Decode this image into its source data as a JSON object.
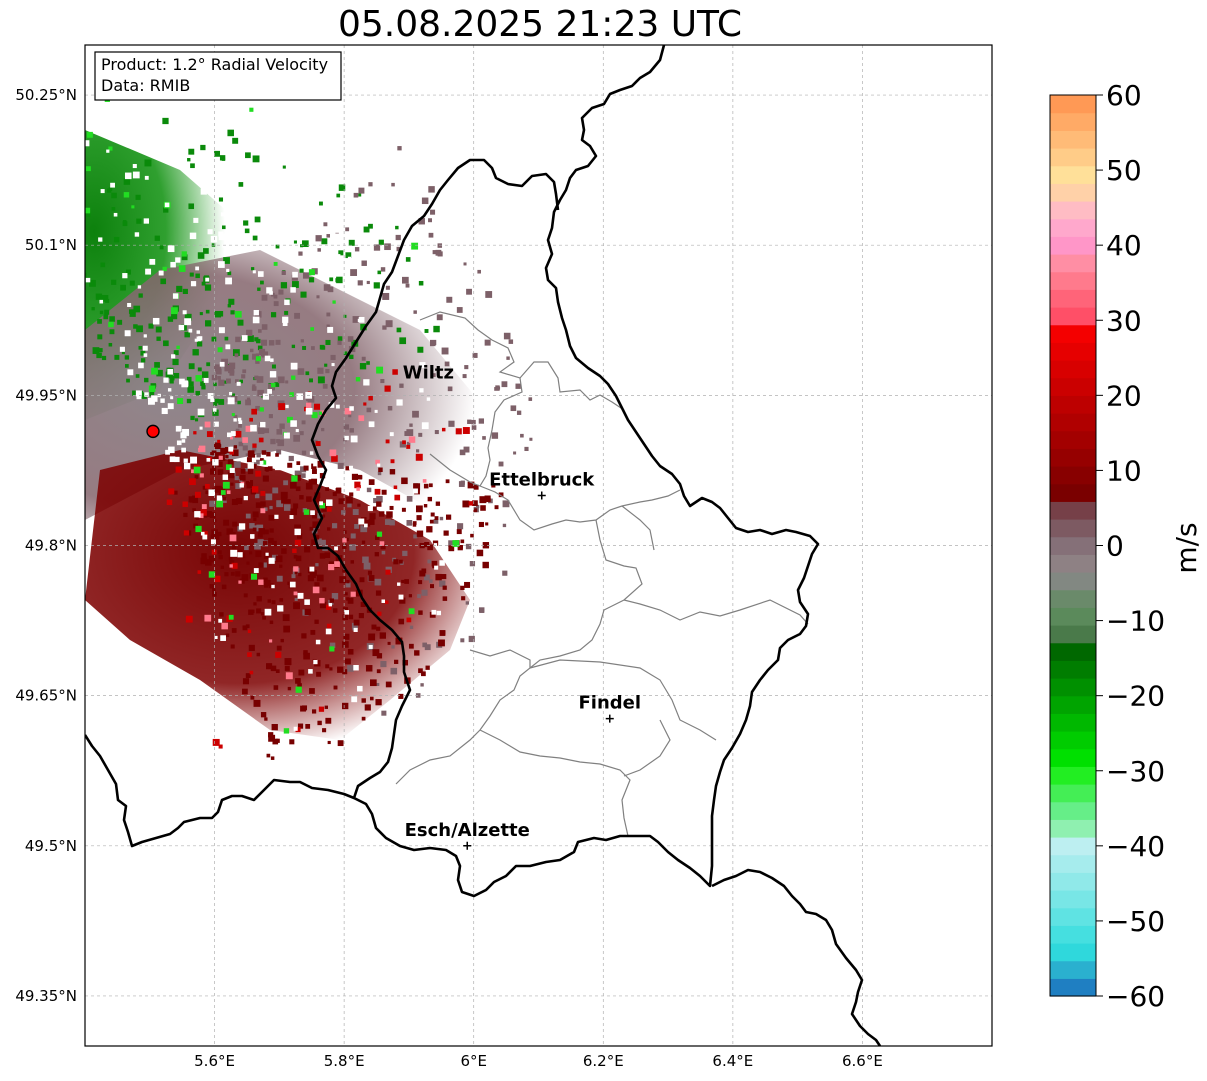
{
  "title": "05.08.2025 21:23 UTC",
  "info_box": {
    "product": "Product: 1.2° Radial Velocity",
    "data": "Data: RMIB"
  },
  "map": {
    "lon_range": [
      5.4,
      6.8
    ],
    "lat_range": [
      49.3,
      50.3
    ],
    "lat_ticks": [
      {
        "value": 50.25,
        "label": "50.25°N"
      },
      {
        "value": 50.1,
        "label": "50.1°N"
      },
      {
        "value": 49.95,
        "label": "49.95°N"
      },
      {
        "value": 49.8,
        "label": "49.8°N"
      },
      {
        "value": 49.65,
        "label": "49.65°N"
      },
      {
        "value": 49.5,
        "label": "49.5°N"
      },
      {
        "value": 49.35,
        "label": "49.35°N"
      }
    ],
    "lon_ticks": [
      {
        "value": 5.6,
        "label": "5.6°E"
      },
      {
        "value": 5.8,
        "label": "5.8°E"
      },
      {
        "value": 6.0,
        "label": "6°E"
      },
      {
        "value": 6.2,
        "label": "6.2°E"
      },
      {
        "value": 6.4,
        "label": "6.4°E"
      },
      {
        "value": 6.6,
        "label": "6.6°E"
      }
    ],
    "grid": true,
    "radar_site": {
      "lon": 5.505,
      "lat": 49.914
    },
    "cities": [
      {
        "name": "Wiltz",
        "lon": 5.93,
        "lat": 49.967,
        "marker": false
      },
      {
        "name": "Ettelbruck",
        "lon": 6.105,
        "lat": 49.85,
        "marker": true
      },
      {
        "name": "Findel",
        "lon": 6.21,
        "lat": 49.627,
        "marker": true
      },
      {
        "name": "Esch/Alzette",
        "lon": 5.99,
        "lat": 49.5,
        "marker": true
      }
    ]
  },
  "colorbar": {
    "label": "m/s",
    "min": -60,
    "max": 60,
    "ticks": [
      {
        "value": 60,
        "label": "60"
      },
      {
        "value": 50,
        "label": "50"
      },
      {
        "value": 40,
        "label": "40"
      },
      {
        "value": 30,
        "label": "30"
      },
      {
        "value": 20,
        "label": "20"
      },
      {
        "value": 10,
        "label": "10"
      },
      {
        "value": 0,
        "label": "0"
      },
      {
        "value": -10,
        "label": "−10"
      },
      {
        "value": -20,
        "label": "−20"
      },
      {
        "value": -30,
        "label": "−30"
      },
      {
        "value": -40,
        "label": "−40"
      },
      {
        "value": -50,
        "label": "−50"
      },
      {
        "value": -60,
        "label": "−60"
      }
    ],
    "colors": [
      "#1f7fc2",
      "#2ab0cf",
      "#2fd8dc",
      "#45dfe0",
      "#5fe3e3",
      "#78e6e6",
      "#90e9e9",
      "#a6eced",
      "#bdeff1",
      "#8ff0b0",
      "#66ee88",
      "#44ee55",
      "#22ee22",
      "#00e000",
      "#00cc00",
      "#00b800",
      "#00a400",
      "#009000",
      "#007d00",
      "#006800",
      "#4a7a4a",
      "#5b8a5b",
      "#6a8a6a",
      "#828882",
      "#8e8184",
      "#857078",
      "#7d5a62",
      "#764048",
      "#7a0000",
      "#880000",
      "#960000",
      "#a30000",
      "#b00000",
      "#bd0000",
      "#cb0000",
      "#d80000",
      "#e60000",
      "#f40000",
      "#ff4f67",
      "#ff6479",
      "#ff7a8c",
      "#ff8ea4",
      "#ff96c8",
      "#ffa8cc",
      "#ffbcc4",
      "#ffd1a8",
      "#ffe099",
      "#ffcc88",
      "#ffbb77",
      "#ffaa66",
      "#ff9955"
    ]
  }
}
